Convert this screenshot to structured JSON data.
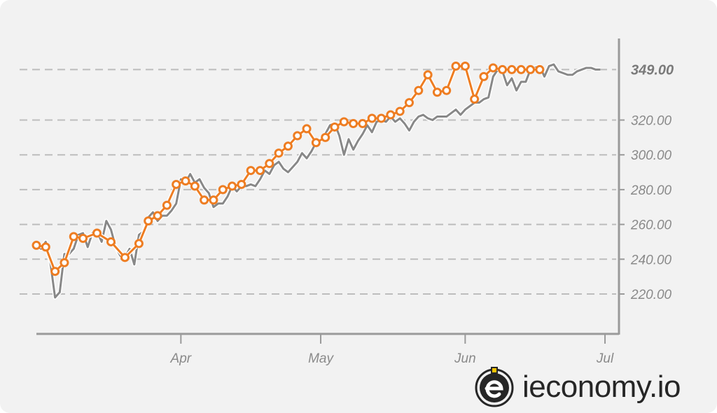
{
  "brand": {
    "name": "ieconomy.io",
    "icon": "e-circle-logo-icon"
  },
  "colors": {
    "background": "#f2f2f2",
    "price_line": "#888888",
    "average_line": "#ee7d22",
    "grid": "#bdbdbd",
    "axis": "#999999"
  },
  "chart_data": {
    "type": "line",
    "title": "",
    "xlabel": "",
    "ylabel": "",
    "x_ticks": [
      "Apr",
      "May",
      "Jun",
      "Jul"
    ],
    "x_tick_days": [
      31,
      61,
      92,
      122
    ],
    "y_ticks": [
      "220.00",
      "240.00",
      "260.00",
      "280.00",
      "300.00",
      "320.00"
    ],
    "y_tick_values": [
      220,
      240,
      260,
      280,
      300,
      320
    ],
    "ylim": [
      197,
      380
    ],
    "xlim_days": [
      0,
      125
    ],
    "last_value_label": "349.00",
    "last_value": 349,
    "grid": "horizontal-dashed",
    "y_axis_position": "right",
    "series": [
      {
        "role": "price",
        "x_days": [
          0,
          1,
          2,
          3,
          4,
          5,
          6,
          7,
          8,
          9,
          10,
          11,
          12,
          13,
          14,
          15,
          16,
          17,
          18,
          19,
          20,
          21,
          22,
          23,
          24,
          25,
          26,
          27,
          28,
          29,
          30,
          31,
          32,
          33,
          34,
          35,
          36,
          37,
          38,
          39,
          40,
          41,
          42,
          43,
          44,
          45,
          46,
          47,
          48,
          49,
          50,
          51,
          52,
          53,
          54,
          55,
          56,
          57,
          58,
          59,
          60,
          61,
          62,
          63,
          64,
          65,
          66,
          67,
          68,
          69,
          70,
          71,
          72,
          73,
          74,
          75,
          76,
          77,
          78,
          79,
          80,
          81,
          82,
          83,
          84,
          85,
          86,
          87,
          88,
          89,
          90,
          91,
          92,
          93,
          94,
          95,
          96,
          97,
          98,
          99,
          100,
          101,
          102,
          103,
          104,
          105,
          106,
          107,
          108,
          109,
          110,
          111,
          112,
          113,
          114,
          115,
          116,
          117,
          118,
          119,
          120,
          121
        ],
        "values": [
          248,
          246,
          250,
          238,
          218,
          221,
          243,
          243,
          246,
          254,
          255,
          247,
          255,
          256,
          250,
          262,
          257,
          247,
          242,
          241,
          246,
          237,
          254,
          256,
          264,
          267,
          262,
          265,
          265,
          268,
          272,
          286,
          284,
          289,
          284,
          286,
          281,
          278,
          270,
          272,
          272,
          276,
          282,
          279,
          282,
          282,
          283,
          282,
          286,
          291,
          289,
          294,
          296,
          292,
          290,
          293,
          296,
          301,
          298,
          302,
          307,
          309,
          312,
          317,
          318,
          311,
          300,
          309,
          303,
          308,
          312,
          317,
          313,
          319,
          320,
          319,
          322,
          319,
          321,
          318,
          314,
          319,
          322,
          323,
          321,
          320,
          322,
          322,
          322,
          324,
          326,
          323,
          326,
          328,
          330,
          330,
          332,
          333,
          345,
          349,
          348,
          340,
          344,
          337,
          342,
          342,
          349,
          350,
          351,
          345,
          351,
          352,
          348,
          347,
          346,
          346,
          348,
          349,
          350,
          350,
          349,
          349
        ]
      },
      {
        "role": "average",
        "x_days": [
          0,
          2,
          4,
          6,
          8,
          10,
          13,
          16,
          19,
          22,
          24,
          26,
          28,
          30,
          32,
          34,
          36,
          38,
          40,
          42,
          44,
          46,
          48,
          50,
          52,
          54,
          56,
          58,
          60,
          62,
          64,
          66,
          68,
          70,
          72,
          74,
          76,
          78,
          80,
          82,
          84,
          86,
          88,
          90,
          92,
          94,
          96,
          98,
          100,
          102,
          104,
          106,
          108
        ],
        "values": [
          248,
          247,
          233,
          238,
          253,
          252,
          255,
          250,
          241,
          249,
          262,
          265,
          271,
          283,
          285,
          282,
          274,
          274,
          280,
          282,
          283,
          291,
          291,
          295,
          301,
          305,
          311,
          315,
          307,
          310,
          316,
          319,
          318,
          318,
          321,
          321,
          323,
          325,
          330,
          337,
          346,
          336,
          337,
          351,
          351,
          332,
          345,
          350,
          349,
          349,
          349,
          349,
          349
        ],
        "markers": true
      }
    ]
  }
}
